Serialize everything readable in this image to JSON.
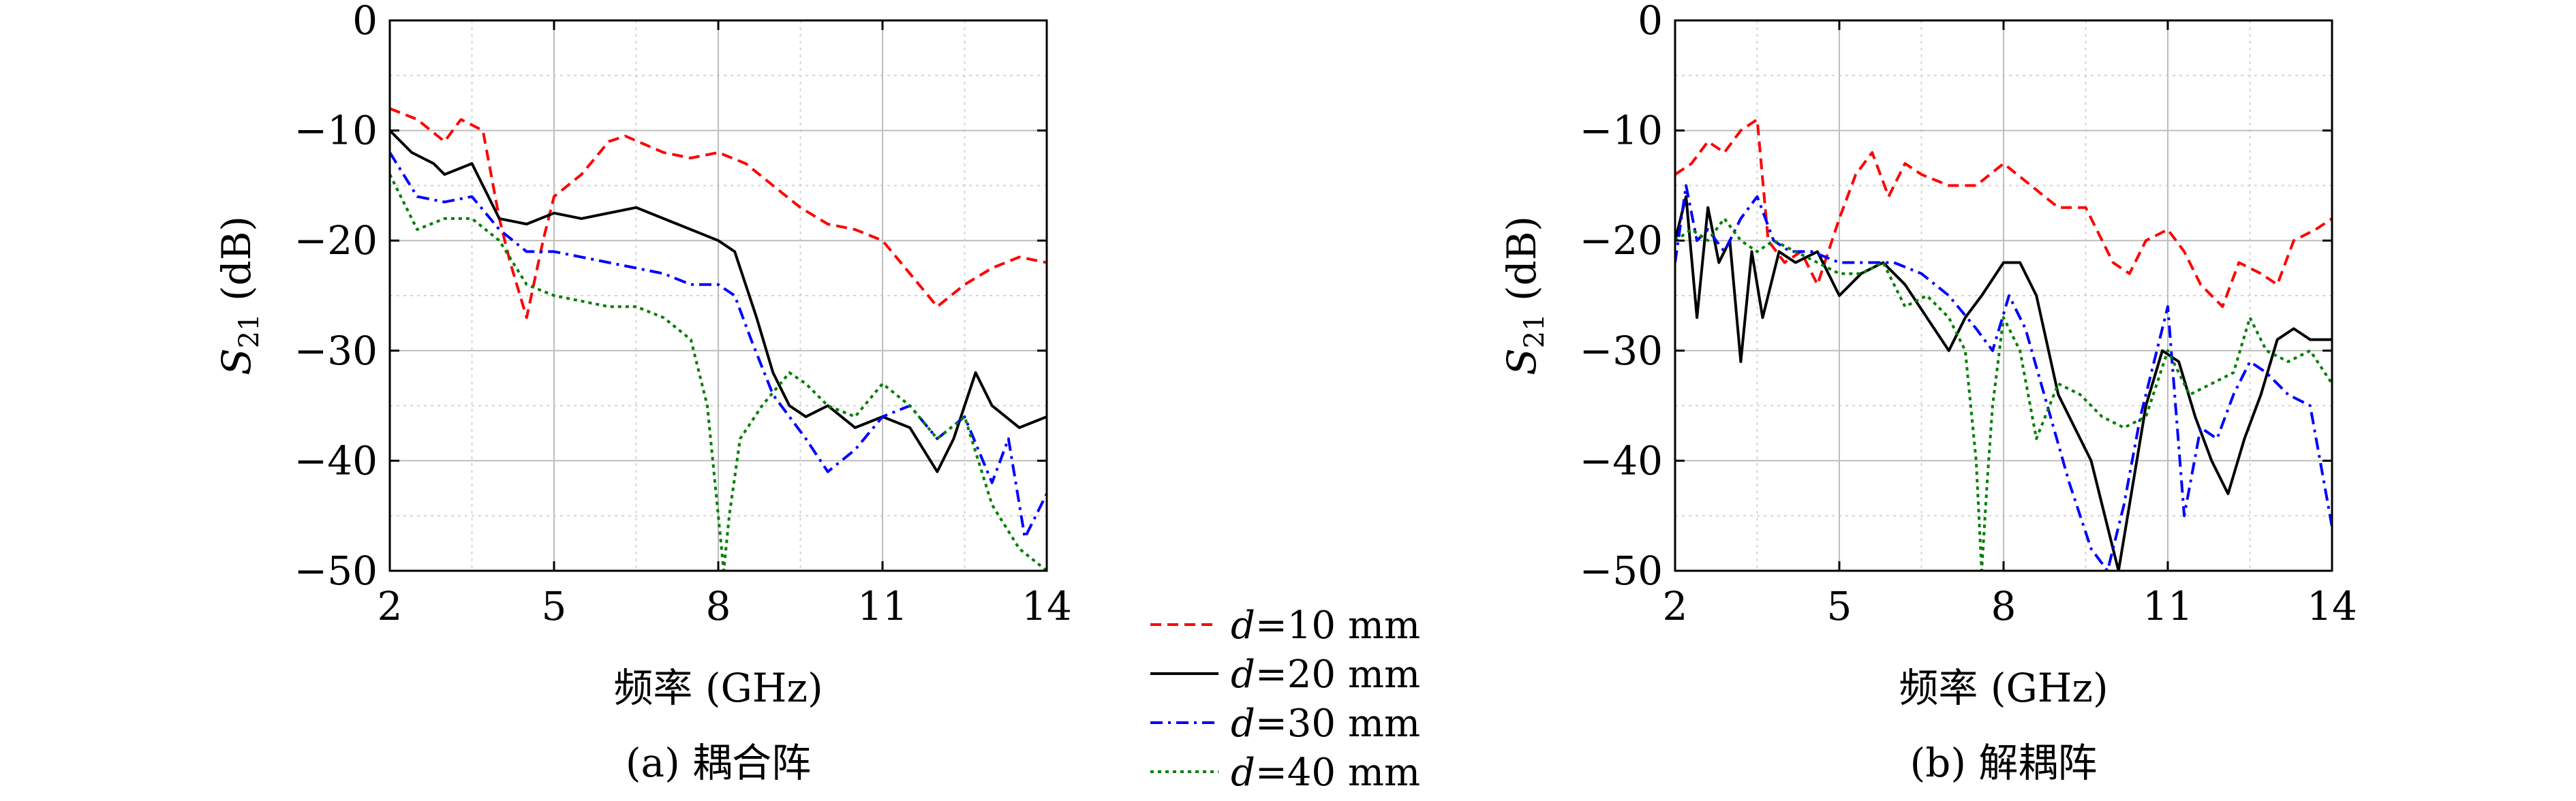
{
  "chart_data": [
    {
      "type": "line",
      "caption": "(a) 耦合阵",
      "xlabel": "频率 (GHz)",
      "ylabel_main": "S",
      "ylabel_sub": "21",
      "ylabel_unit": " (dB)",
      "xlim": [
        2,
        14
      ],
      "ylim": [
        -50,
        0
      ],
      "xticks": [
        2,
        5,
        8,
        11,
        14
      ],
      "yticks": [
        0,
        -10,
        -20,
        -30,
        -40,
        -50
      ],
      "grid": true,
      "series": [
        {
          "key": "d10",
          "x": [
            2,
            2.5,
            3,
            3.3,
            3.7,
            4,
            4.2,
            4.5,
            4.8,
            5,
            5.5,
            6,
            6.3,
            7,
            7.5,
            8,
            8.5,
            9,
            9.5,
            10,
            10.5,
            11,
            11.5,
            12,
            12.5,
            13,
            13.5,
            14
          ],
          "y": [
            -8,
            -9,
            -11,
            -9,
            -10,
            -18,
            -22,
            -27,
            -20,
            -16,
            -14,
            -11,
            -10.5,
            -12,
            -12.5,
            -12,
            -13,
            -15,
            -17,
            -18.5,
            -19,
            -20,
            -23,
            -26,
            -24,
            -22.5,
            -21.5,
            -22
          ]
        },
        {
          "key": "d20",
          "x": [
            2,
            2.4,
            2.8,
            3,
            3.5,
            4,
            4.5,
            5,
            5.5,
            6,
            6.5,
            7,
            7.5,
            8,
            8.3,
            8.7,
            9,
            9.3,
            9.6,
            10,
            10.5,
            11,
            11.5,
            12,
            12.3,
            12.7,
            13,
            13.5,
            14
          ],
          "y": [
            -10,
            -12,
            -13,
            -14,
            -13,
            -18,
            -18.5,
            -17.5,
            -18,
            -17.5,
            -17,
            -18,
            -19,
            -20,
            -21,
            -27,
            -32,
            -35,
            -36,
            -35,
            -37,
            -36,
            -37,
            -41,
            -38,
            -32,
            -35,
            -37,
            -36
          ]
        },
        {
          "key": "d30",
          "x": [
            2,
            2.5,
            3,
            3.5,
            4,
            4.5,
            5,
            5.5,
            6,
            6.5,
            7,
            7.5,
            8,
            8.3,
            8.6,
            9,
            9.3,
            9.6,
            10,
            10.5,
            11,
            11.5,
            12,
            12.5,
            13,
            13.3,
            13.6,
            14
          ],
          "y": [
            -12,
            -16,
            -16.5,
            -16,
            -19,
            -21,
            -21,
            -21.5,
            -22,
            -22.5,
            -23,
            -24,
            -24,
            -25,
            -29,
            -34,
            -36,
            -38,
            -41,
            -39,
            -36,
            -35,
            -38,
            -36,
            -42,
            -38,
            -47,
            -43
          ]
        },
        {
          "key": "d40",
          "x": [
            2,
            2.5,
            3,
            3.5,
            4,
            4.5,
            5,
            5.5,
            6,
            6.5,
            7,
            7.5,
            7.8,
            8,
            8.1,
            8.2,
            8.4,
            8.8,
            9.3,
            9.6,
            10,
            10.5,
            11,
            11.5,
            12,
            12.5,
            13,
            13.5,
            14
          ],
          "y": [
            -14,
            -19,
            -18,
            -18,
            -20,
            -24,
            -25,
            -25.5,
            -26,
            -26,
            -27,
            -29,
            -35,
            -45,
            -50,
            -45,
            -38,
            -35,
            -32,
            -33,
            -35,
            -36,
            -33,
            -35,
            -38,
            -36,
            -44,
            -48,
            -50
          ]
        }
      ]
    },
    {
      "type": "line",
      "caption": "(b) 解耦阵",
      "xlabel": "频率 (GHz)",
      "ylabel_main": "S",
      "ylabel_sub": "21",
      "ylabel_unit": " (dB)",
      "xlim": [
        2,
        14
      ],
      "ylim": [
        -50,
        0
      ],
      "xticks": [
        2,
        5,
        8,
        11,
        14
      ],
      "yticks": [
        0,
        -10,
        -20,
        -30,
        -40,
        -50
      ],
      "grid": true,
      "series": [
        {
          "key": "d10",
          "x": [
            2,
            2.3,
            2.6,
            2.9,
            3.2,
            3.5,
            3.7,
            4,
            4.3,
            4.6,
            5,
            5.3,
            5.6,
            5.9,
            6.2,
            6.5,
            7,
            7.5,
            8,
            8.5,
            9,
            9.5,
            10,
            10.3,
            10.6,
            11,
            11.3,
            11.6,
            12,
            12.3,
            12.7,
            13,
            13.3,
            13.7,
            14
          ],
          "y": [
            -14,
            -13,
            -11,
            -12,
            -10,
            -9,
            -20,
            -22,
            -21,
            -24,
            -18,
            -14,
            -12,
            -16,
            -13,
            -14,
            -15,
            -15,
            -13,
            -15,
            -17,
            -17,
            -22,
            -23,
            -20,
            -19,
            -21,
            -24,
            -26,
            -22,
            -23,
            -24,
            -20,
            -19,
            -18
          ]
        },
        {
          "key": "d20",
          "x": [
            2,
            2.2,
            2.4,
            2.6,
            2.8,
            3,
            3.2,
            3.4,
            3.6,
            3.9,
            4.2,
            4.6,
            5,
            5.4,
            5.8,
            6.2,
            6.6,
            7,
            7.3,
            7.6,
            8,
            8.3,
            8.6,
            9,
            9.3,
            9.6,
            9.9,
            10.1,
            10.3,
            10.6,
            10.9,
            11.2,
            11.5,
            11.8,
            12.1,
            12.4,
            12.7,
            13,
            13.3,
            13.6,
            14
          ],
          "y": [
            -20,
            -16,
            -27,
            -17,
            -22,
            -20,
            -31,
            -21,
            -27,
            -21,
            -22,
            -21,
            -25,
            -23,
            -22,
            -24,
            -27,
            -30,
            -27,
            -25,
            -22,
            -22,
            -25,
            -34,
            -37,
            -40,
            -46,
            -50,
            -44,
            -35,
            -30,
            -31,
            -36,
            -40,
            -43,
            -38,
            -34,
            -29,
            -28,
            -29,
            -29
          ]
        },
        {
          "key": "d30",
          "x": [
            2,
            2.2,
            2.4,
            2.6,
            2.9,
            3.2,
            3.5,
            3.8,
            4.1,
            4.5,
            5,
            5.5,
            6,
            6.5,
            7,
            7.5,
            7.8,
            8.1,
            8.4,
            8.8,
            9.2,
            9.6,
            9.9,
            10.2,
            10.5,
            10.8,
            11,
            11.3,
            11.6,
            11.9,
            12.2,
            12.5,
            12.8,
            13.2,
            13.6,
            14
          ],
          "y": [
            -22,
            -15,
            -20,
            -19,
            -21,
            -18,
            -16,
            -20,
            -21,
            -21,
            -22,
            -22,
            -22,
            -23,
            -25,
            -28,
            -30,
            -25,
            -28,
            -35,
            -42,
            -48,
            -50,
            -44,
            -36,
            -30,
            -26,
            -45,
            -37,
            -38,
            -34,
            -31,
            -32,
            -34,
            -35,
            -46
          ]
        },
        {
          "key": "d40",
          "x": [
            2,
            2.3,
            2.6,
            2.9,
            3.2,
            3.5,
            3.8,
            4.2,
            4.6,
            5,
            5.4,
            5.8,
            6.2,
            6.6,
            7,
            7.3,
            7.5,
            7.6,
            7.7,
            7.8,
            8,
            8.3,
            8.6,
            9,
            9.4,
            9.8,
            10.2,
            10.6,
            11,
            11.4,
            11.8,
            12.2,
            12.5,
            12.8,
            13.2,
            13.6,
            14
          ],
          "y": [
            -20,
            -19,
            -20,
            -18,
            -20,
            -21,
            -20,
            -21,
            -22,
            -23,
            -23,
            -22,
            -26,
            -25,
            -27,
            -30,
            -40,
            -50,
            -42,
            -35,
            -27,
            -30,
            -38,
            -33,
            -34,
            -36,
            -37,
            -36,
            -30,
            -34,
            -33,
            -32,
            -27,
            -30,
            -31,
            -30,
            -33
          ]
        }
      ]
    }
  ],
  "legend": {
    "placement": "bottom-center",
    "entries": [
      {
        "key": "d10",
        "var": "d",
        "text": "=10 mm",
        "color": "#ff0000",
        "dash": "dashed"
      },
      {
        "key": "d20",
        "var": "d",
        "text": "=20 mm",
        "color": "#000000",
        "dash": "solid"
      },
      {
        "key": "d30",
        "var": "d",
        "text": "=30 mm",
        "color": "#0000ff",
        "dash": "dashdot"
      },
      {
        "key": "d40",
        "var": "d",
        "text": "=40 mm",
        "color": "#007f00",
        "dash": "dotted"
      }
    ]
  }
}
